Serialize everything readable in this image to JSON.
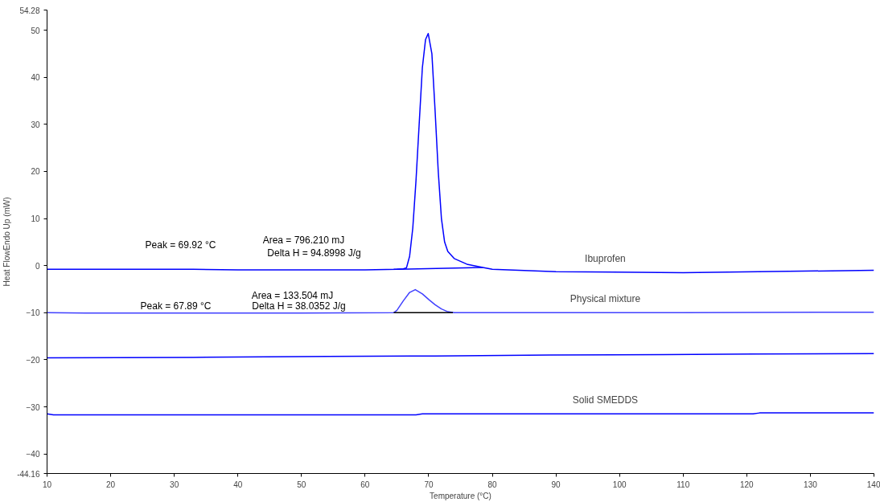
{
  "chart_data": {
    "type": "line",
    "xlabel": "Temperature (°C)",
    "ylabel": "Heat FlowEndo Up (mW)",
    "xlim": [
      10,
      140
    ],
    "xticks": [
      10,
      20,
      30,
      40,
      50,
      60,
      70,
      80,
      90,
      100,
      110,
      120,
      130,
      140
    ],
    "ylim": [
      -44.16,
      54.28
    ],
    "yticks": [
      {
        "value": -44.16,
        "label": "-44.16"
      },
      -40,
      -30,
      -20,
      -10,
      0,
      10,
      20,
      30,
      40,
      50,
      {
        "value": 54.28,
        "label": "54.28"
      }
    ],
    "grid": false,
    "legend": false,
    "series": [
      {
        "name": "Ibuprofen",
        "color": "#0000ff",
        "x": [
          10,
          33,
          40,
          60,
          65,
          66,
          66.5,
          67,
          67.5,
          68,
          68.5,
          69,
          69.5,
          69.92,
          70.5,
          71,
          71.5,
          72,
          72.5,
          73,
          74,
          76,
          78.5,
          80,
          90,
          110,
          140
        ],
        "values": [
          -0.8,
          -0.8,
          -0.9,
          -0.9,
          -0.8,
          -0.7,
          -0.5,
          2,
          8,
          18,
          30,
          42,
          48,
          49.3,
          45,
          33,
          20,
          10,
          5,
          3,
          1.5,
          0.3,
          -0.4,
          -0.8,
          -1.3,
          -1.5,
          -1.0
        ]
      },
      {
        "color": "#0000ff",
        "x": [
          64.5,
          78.5
        ],
        "values": [
          -0.8,
          -0.4
        ]
      },
      {
        "name": "Physical mixture",
        "color": "#4040ff",
        "x": [
          10,
          16,
          30,
          50,
          64.5,
          65,
          66,
          67,
          67.89,
          69,
          70,
          71,
          72,
          73,
          74,
          90,
          110,
          140
        ],
        "values": [
          -10,
          -10.1,
          -10.1,
          -10.1,
          -10,
          -9.5,
          -7.5,
          -5.7,
          -5.1,
          -6,
          -7.2,
          -8.3,
          -9.2,
          -9.8,
          -10,
          -10,
          -10,
          -9.9
        ]
      },
      {
        "color": "#000000",
        "x": [
          64.5,
          73.8
        ],
        "values": [
          -10,
          -10
        ]
      },
      {
        "color": "#0000ff",
        "x": [
          10,
          33,
          54,
          71,
          89,
          107,
          121,
          140
        ],
        "values": [
          -19.6,
          -19.5,
          -19.3,
          -19.2,
          -19.0,
          -18.9,
          -18.8,
          -18.7
        ]
      },
      {
        "name": "Solid SMEDDS",
        "color": "#0000ff",
        "x": [
          10,
          11,
          68,
          69,
          121,
          122,
          140
        ],
        "values": [
          -31.5,
          -31.7,
          -31.7,
          -31.5,
          -31.5,
          -31.3,
          -31.3
        ]
      }
    ],
    "annotations": [
      "Peak = 69.92 °C",
      "Area = 796.210 mJ",
      "Delta H = 94.8998 J/g",
      "Peak = 67.89 °C",
      "Area = 133.504 mJ",
      "Delta H = 38.0352 J/g"
    ]
  }
}
